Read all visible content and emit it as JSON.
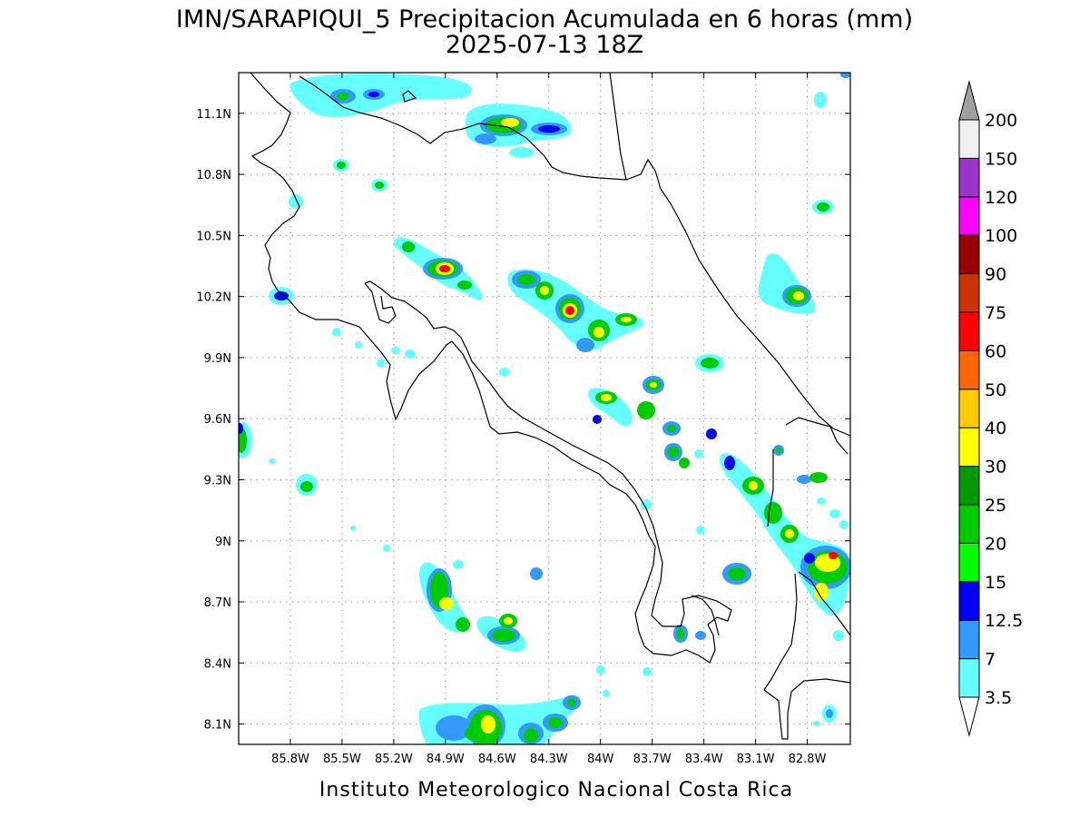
{
  "title": {
    "line1": "IMN/SARAPIQUI_5 Precipitacion Acumulada en 6 horas (mm)",
    "line2": "2025-07-13 18Z"
  },
  "footer": "Instituto Meteorologico Nacional Costa Rica",
  "map": {
    "lon_range": [
      -86.1,
      -82.55
    ],
    "lat_range": [
      8.0,
      11.3
    ],
    "lon_ticks": [
      {
        "value": -85.8,
        "label": "85.8W"
      },
      {
        "value": -85.5,
        "label": "85.5W"
      },
      {
        "value": -85.2,
        "label": "85.2W"
      },
      {
        "value": -84.9,
        "label": "84.9W"
      },
      {
        "value": -84.6,
        "label": "84.6W"
      },
      {
        "value": -84.3,
        "label": "84.3W"
      },
      {
        "value": -84.0,
        "label": "84W"
      },
      {
        "value": -83.7,
        "label": "83.7W"
      },
      {
        "value": -83.4,
        "label": "83.4W"
      },
      {
        "value": -83.1,
        "label": "83.1W"
      },
      {
        "value": -82.8,
        "label": "82.8W"
      }
    ],
    "lat_ticks": [
      {
        "value": 11.1,
        "label": "11.1N"
      },
      {
        "value": 10.8,
        "label": "10.8N"
      },
      {
        "value": 10.5,
        "label": "10.5N"
      },
      {
        "value": 10.2,
        "label": "10.2N"
      },
      {
        "value": 9.9,
        "label": "9.9N"
      },
      {
        "value": 9.6,
        "label": "9.6N"
      },
      {
        "value": 9.3,
        "label": "9.3N"
      },
      {
        "value": 9.0,
        "label": "9N"
      },
      {
        "value": 8.7,
        "label": "8.7N"
      },
      {
        "value": 8.4,
        "label": "8.4N"
      },
      {
        "value": 8.1,
        "label": "8.1N"
      }
    ],
    "grid": true
  },
  "colorbar": {
    "levels": [
      "3.5",
      "7",
      "12.5",
      "15",
      "20",
      "25",
      "30",
      "40",
      "50",
      "60",
      "75",
      "90",
      "100",
      "120",
      "150",
      "200"
    ],
    "colors": [
      "#66ffff",
      "#3399ff",
      "#0000ff",
      "#00ff00",
      "#00cc00",
      "#009900",
      "#ffff00",
      "#ffcc00",
      "#ff6600",
      "#ff0000",
      "#cc3300",
      "#990000",
      "#ff00ff",
      "#9933cc",
      "#f0f0f0",
      "#a0a0a0"
    ]
  }
}
